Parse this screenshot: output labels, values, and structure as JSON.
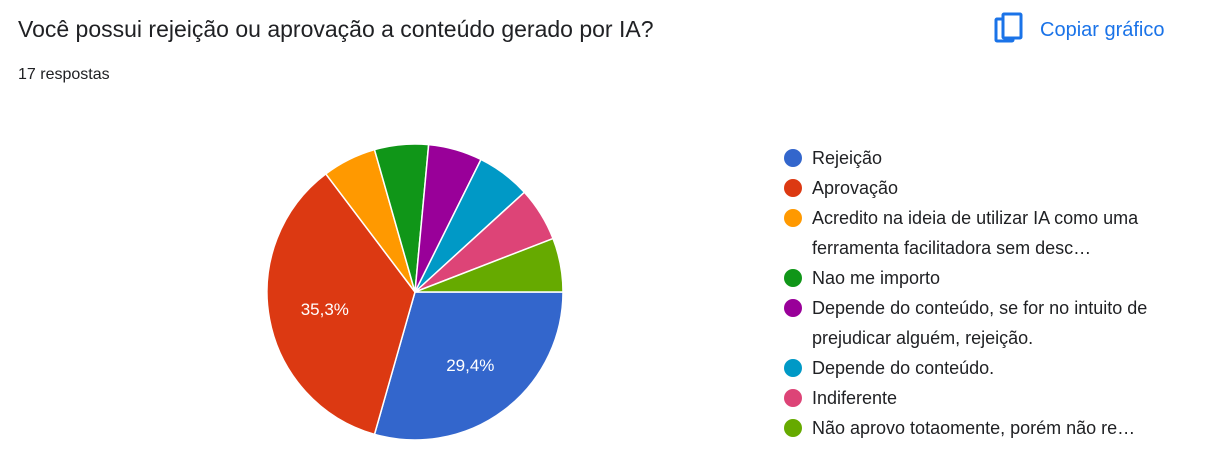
{
  "header": {
    "title": "Você possui rejeição ou aprovação a conteúdo gerado por IA?",
    "subtitle": "17 respostas",
    "copy_label": "Copiar gráfico",
    "copy_icon": "copy-icon",
    "accent_color": "#1a73e8"
  },
  "chart_data": {
    "type": "pie",
    "title": "",
    "series": [
      {
        "name": "Rejeição",
        "value": 5,
        "color": "#3366cc"
      },
      {
        "name": "Aprovação",
        "value": 6,
        "color": "#dc3912"
      },
      {
        "name": "Acredito na ideia de utilizar IA como uma ferramenta facilitadora sem desc…",
        "value": 1,
        "color": "#ff9900"
      },
      {
        "name": "Nao me importo",
        "value": 1,
        "color": "#109618"
      },
      {
        "name": "Depende do conteúdo, se for no intuito de prejudicar alguém, rejeição.",
        "value": 1,
        "color": "#990099"
      },
      {
        "name": "Depende do conteúdo.",
        "value": 1,
        "color": "#0099c6"
      },
      {
        "name": "Indiferente",
        "value": 1,
        "color": "#dd4477"
      },
      {
        "name": "Não aprovo totaomente, porém não re…",
        "value": 1,
        "color": "#66aa00"
      }
    ],
    "data_labels": [
      "29,4%",
      "35,3%",
      "",
      "",
      "",
      "",
      "",
      ""
    ],
    "legend_position": "right"
  }
}
